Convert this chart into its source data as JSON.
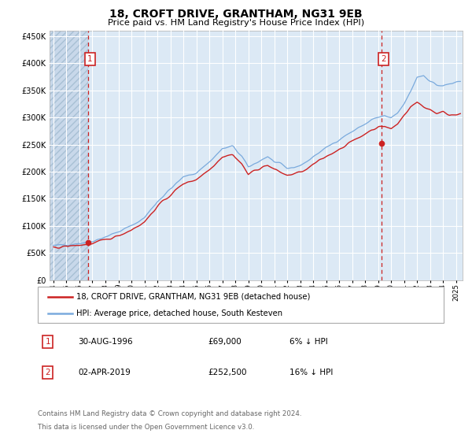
{
  "title": "18, CROFT DRIVE, GRANTHAM, NG31 9EB",
  "subtitle": "Price paid vs. HM Land Registry's House Price Index (HPI)",
  "title_fontsize": 10,
  "subtitle_fontsize": 8.5,
  "bg_color": "#dce9f5",
  "hatch_color": "#b8cfe0",
  "grid_color": "#ffffff",
  "line_hpi_color": "#7aaadd",
  "line_price_color": "#cc2222",
  "purchase1_date": 1996.66,
  "purchase1_price": 69000,
  "purchase2_date": 2019.25,
  "purchase2_price": 252500,
  "legend_label1": "18, CROFT DRIVE, GRANTHAM, NG31 9EB (detached house)",
  "legend_label2": "HPI: Average price, detached house, South Kesteven",
  "annotation1_label": "1",
  "annotation2_label": "2",
  "footer1": "Contains HM Land Registry data © Crown copyright and database right 2024.",
  "footer2": "This data is licensed under the Open Government Licence v3.0.",
  "table_row1": [
    "1",
    "30-AUG-1996",
    "£69,000",
    "6% ↓ HPI"
  ],
  "table_row2": [
    "2",
    "02-APR-2019",
    "£252,500",
    "16% ↓ HPI"
  ],
  "ylim": [
    0,
    460000
  ],
  "xlim_start": 1993.7,
  "xlim_end": 2025.5,
  "hpi_anchors_x": [
    1994.0,
    1995.0,
    1996.0,
    1997.0,
    1998.0,
    1999.0,
    2000.0,
    2001.0,
    2002.0,
    2003.0,
    2004.0,
    2005.0,
    2006.0,
    2007.0,
    2007.8,
    2008.5,
    2009.0,
    2009.5,
    2010.0,
    2010.5,
    2011.0,
    2011.5,
    2012.0,
    2012.5,
    2013.0,
    2013.5,
    2014.0,
    2015.0,
    2016.0,
    2017.0,
    2018.0,
    2018.5,
    2019.0,
    2019.5,
    2020.0,
    2020.5,
    2021.0,
    2021.5,
    2022.0,
    2022.5,
    2023.0,
    2023.5,
    2024.0,
    2024.5,
    2025.3
  ],
  "hpi_anchors_y": [
    63000,
    65500,
    68000,
    72000,
    80000,
    89000,
    100000,
    115000,
    145000,
    168000,
    190000,
    198000,
    218000,
    242000,
    247000,
    228000,
    208000,
    215000,
    222000,
    228000,
    218000,
    213000,
    206000,
    208000,
    212000,
    218000,
    228000,
    244000,
    260000,
    274000,
    288000,
    296000,
    300000,
    303000,
    298000,
    308000,
    325000,
    348000,
    375000,
    378000,
    368000,
    360000,
    358000,
    362000,
    365000
  ],
  "price_anchors_x": [
    1994.0,
    1995.0,
    1996.0,
    1997.0,
    1998.0,
    1999.0,
    2000.0,
    2001.0,
    2002.0,
    2003.0,
    2004.0,
    2005.0,
    2006.0,
    2007.0,
    2007.8,
    2008.5,
    2009.0,
    2009.5,
    2010.0,
    2010.5,
    2011.0,
    2011.5,
    2012.0,
    2012.5,
    2013.0,
    2013.5,
    2014.0,
    2015.0,
    2016.0,
    2017.0,
    2018.0,
    2018.5,
    2019.0,
    2019.5,
    2020.0,
    2020.5,
    2021.0,
    2021.5,
    2022.0,
    2022.5,
    2023.0,
    2023.5,
    2024.0,
    2024.5,
    2025.3
  ],
  "price_anchors_y": [
    60000,
    62000,
    64500,
    67000,
    74000,
    82000,
    93000,
    107000,
    136000,
    157000,
    178000,
    186000,
    204000,
    228000,
    232000,
    214000,
    195000,
    202000,
    208000,
    212000,
    204000,
    199000,
    193000,
    196000,
    199000,
    204000,
    213000,
    228000,
    242000,
    256000,
    270000,
    278000,
    282000,
    284000,
    279000,
    288000,
    305000,
    320000,
    328000,
    320000,
    315000,
    308000,
    310000,
    305000,
    308000
  ]
}
